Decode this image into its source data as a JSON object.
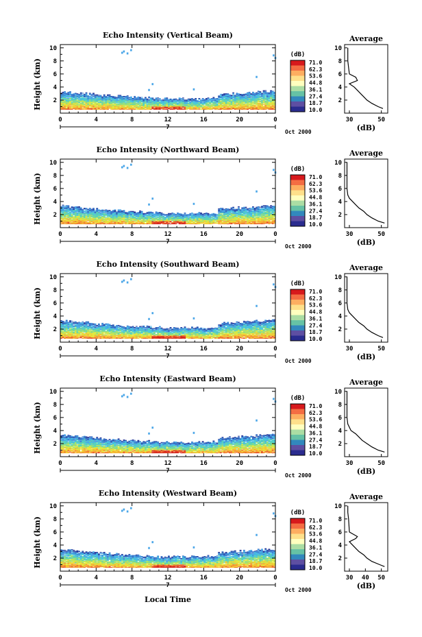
{
  "figure": {
    "global_xlabel": "Local Time",
    "colorbar_label": "(dB)",
    "colorbar_ticks": [
      "71.0",
      "62.3",
      "53.6",
      "44.8",
      "36.1",
      "27.4",
      "18.7",
      "10.0"
    ],
    "colorbar_colors": [
      "#d7191c",
      "#f46d43",
      "#fdae61",
      "#fee08b",
      "#ffffbf",
      "#abdda4",
      "#66c2a5",
      "#3288bd",
      "#5e4fa2",
      "#2b2c8f"
    ],
    "date_label": "Oct 2000",
    "day_label": "7",
    "avg_title": "Average",
    "avg_xlabel": "(dB)"
  },
  "chart_data": [
    {
      "type": "heatmap",
      "title": "Echo Intensity (Vertical Beam)",
      "ylabel": "Height (km)",
      "xlabel": "",
      "x_ticks": [
        "0",
        "4",
        "8",
        "12",
        "16",
        "20",
        "0"
      ],
      "y_ticks": [
        "2",
        "4",
        "6",
        "8",
        "10"
      ],
      "xlim": [
        0,
        24
      ],
      "ylim": [
        0,
        10.5
      ],
      "avg_profile": {
        "xlabel": "(dB)",
        "x_ticks": [
          "30",
          "50"
        ],
        "xlim": [
          27,
          54
        ],
        "heights": [
          0.7,
          1,
          1.5,
          2,
          2.5,
          3,
          3.5,
          4,
          4.5,
          5,
          5.5,
          6,
          7,
          8,
          9,
          10
        ],
        "values": [
          51,
          48,
          44,
          41,
          39,
          37,
          35,
          33,
          30,
          35,
          34,
          30,
          29.5,
          29,
          29,
          29
        ]
      }
    },
    {
      "type": "heatmap",
      "title": "Echo Intensity (Northward Beam)",
      "ylabel": "Height (km)",
      "xlabel": "",
      "x_ticks": [
        "0",
        "4",
        "8",
        "12",
        "16",
        "20",
        "0"
      ],
      "y_ticks": [
        "2",
        "4",
        "6",
        "8",
        "10"
      ],
      "xlim": [
        0,
        24
      ],
      "ylim": [
        0,
        10.5
      ],
      "avg_profile": {
        "xlabel": "(dB)",
        "x_ticks": [
          "30",
          "50"
        ],
        "xlim": [
          27,
          54
        ],
        "heights": [
          0.7,
          1,
          1.5,
          2,
          2.5,
          3,
          3.5,
          4,
          4.5,
          5,
          6,
          8,
          10
        ],
        "values": [
          52,
          48,
          44,
          41,
          39,
          36,
          34,
          32,
          30,
          29,
          28.5,
          28.5,
          28.5
        ]
      }
    },
    {
      "type": "heatmap",
      "title": "Echo Intensity (Southward Beam)",
      "ylabel": "Height (km)",
      "xlabel": "",
      "x_ticks": [
        "0",
        "4",
        "8",
        "12",
        "16",
        "20",
        "0"
      ],
      "y_ticks": [
        "2",
        "4",
        "6",
        "8",
        "10"
      ],
      "xlim": [
        0,
        24
      ],
      "ylim": [
        0,
        10.5
      ],
      "avg_profile": {
        "xlabel": "(dB)",
        "x_ticks": [
          "30",
          "50"
        ],
        "xlim": [
          27,
          54
        ],
        "heights": [
          0.7,
          1,
          1.5,
          2,
          2.5,
          3,
          3.5,
          4,
          4.5,
          5,
          6,
          8,
          10
        ],
        "values": [
          51,
          48,
          44,
          41,
          39,
          36,
          34,
          32,
          30,
          29,
          28.5,
          28.5,
          28.5
        ]
      }
    },
    {
      "type": "heatmap",
      "title": "Echo Intensity (Eastward Beam)",
      "ylabel": "Height (km)",
      "xlabel": "",
      "x_ticks": [
        "0",
        "4",
        "8",
        "12",
        "16",
        "20",
        "0"
      ],
      "y_ticks": [
        "2",
        "4",
        "6",
        "8",
        "10"
      ],
      "xlim": [
        0,
        24
      ],
      "ylim": [
        0,
        10.5
      ],
      "avg_profile": {
        "xlabel": "(dB)",
        "x_ticks": [
          "30",
          "50"
        ],
        "xlim": [
          27,
          54
        ],
        "heights": [
          0.7,
          1,
          1.5,
          2,
          2.5,
          3,
          3.5,
          4,
          4.5,
          5,
          6,
          8,
          10
        ],
        "values": [
          52,
          48,
          44,
          41,
          38,
          36,
          34,
          31,
          30,
          29,
          28.5,
          28.5,
          28.5
        ]
      }
    },
    {
      "type": "heatmap",
      "title": "Echo Intensity (Westward Beam)",
      "ylabel": "Height (km)",
      "xlabel": "",
      "x_ticks": [
        "0",
        "4",
        "8",
        "12",
        "16",
        "20",
        "0"
      ],
      "y_ticks": [
        "2",
        "4",
        "6",
        "8",
        "10"
      ],
      "xlim": [
        0,
        24
      ],
      "ylim": [
        0,
        10.5
      ],
      "avg_profile": {
        "xlabel": "(dB)",
        "x_ticks": [
          "30",
          "40",
          "50"
        ],
        "xlim": [
          27,
          54
        ],
        "heights": [
          0.7,
          1,
          1.5,
          2,
          2.5,
          3,
          3.5,
          4,
          4.5,
          5,
          5.3,
          6,
          8,
          9,
          10
        ],
        "values": [
          52,
          49,
          44,
          41,
          39,
          36,
          34,
          32,
          30,
          34,
          35,
          30,
          29.5,
          29,
          29
        ]
      }
    }
  ]
}
